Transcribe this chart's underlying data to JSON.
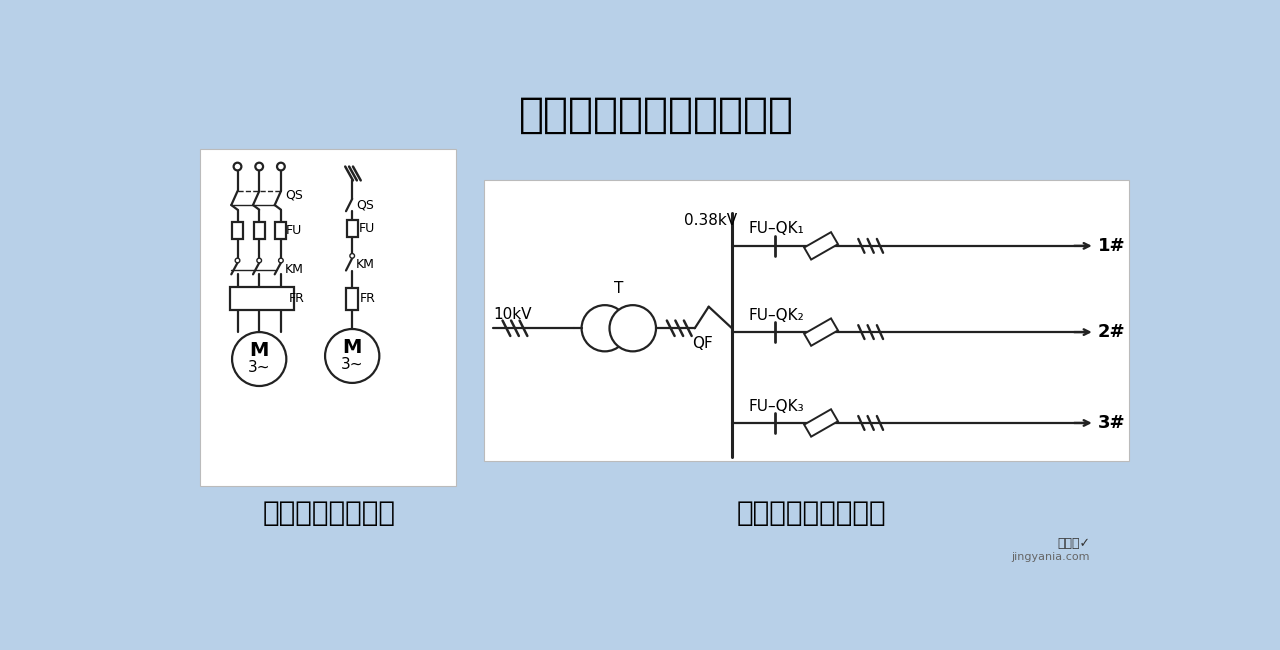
{
  "title": "用一般符号表示的系统图",
  "label_left": "电动机供电系统图",
  "label_right": "某变电所供电系统图",
  "bg_color": "#b8d0e8",
  "title_fontsize": 30,
  "label_fontsize": 20
}
